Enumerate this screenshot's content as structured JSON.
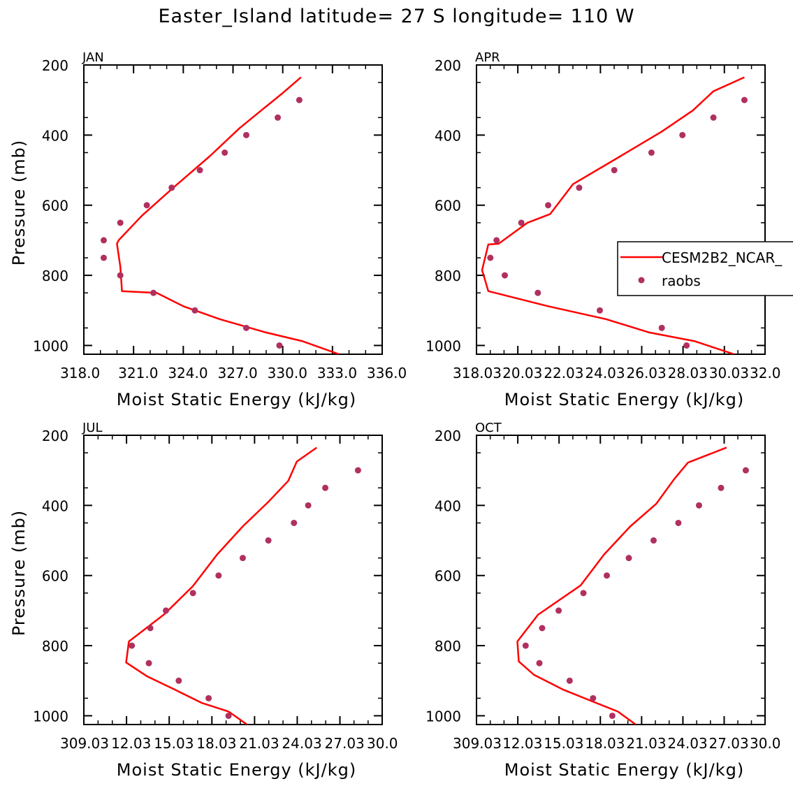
{
  "title": "Easter_Island  latitude= 27 S longitude= 110 W",
  "colors": {
    "model": "#ff0000",
    "obs": "#b03060",
    "axis": "#000000"
  },
  "legend": {
    "placement": "right-middle of APR panel",
    "entries": [
      {
        "name": "CESM2B2_NCAR_",
        "kind": "line"
      },
      {
        "name": "raobs",
        "kind": "marker"
      }
    ]
  },
  "chart_data": [
    {
      "type": "line",
      "panel": "JAN",
      "xlabel": "Moist Static Energy (kJ/kg)",
      "ylabel": "Pressure (mb)",
      "xlim": [
        318.0,
        336.0
      ],
      "ylim": [
        200,
        1025
      ],
      "xticks": [
        318,
        321,
        324,
        327,
        330,
        333,
        336
      ],
      "xtick_labels": [
        "318.0",
        "321.0",
        "324.0",
        "327.0",
        "330.0",
        "333.0",
        "336.0"
      ],
      "yticks": [
        200,
        400,
        600,
        800,
        1000
      ],
      "ytick_labels": [
        "200",
        "400",
        "600",
        "800",
        "1000"
      ],
      "model": {
        "name": "CESM2B2_NCAR_",
        "x": [
          333.4,
          331.2,
          329.0,
          326.2,
          324.0,
          322.4,
          320.3,
          320.2,
          320.0,
          320.1,
          321.5,
          323.4,
          325.6,
          327.4,
          328.7,
          330.0,
          331.1
        ],
        "y": [
          1025,
          988,
          963,
          925,
          888,
          850,
          845,
          775,
          710,
          700,
          630,
          550,
          460,
          380,
          330,
          280,
          235
        ]
      },
      "obs": {
        "name": "raobs",
        "x": [
          329.8,
          327.8,
          324.7,
          322.2,
          320.2,
          319.2,
          319.2,
          320.2,
          321.8,
          323.3,
          325.0,
          326.5,
          327.8,
          329.7,
          331.0
        ],
        "y": [
          1000,
          950,
          900,
          850,
          800,
          750,
          700,
          650,
          600,
          550,
          500,
          450,
          400,
          350,
          300
        ]
      }
    },
    {
      "type": "line",
      "panel": "APR",
      "xlabel": "Moist Static Energy (kJ/kg)",
      "ylabel": "Pressure (mb)",
      "xlim": [
        318.03,
        332.0
      ],
      "ylim": [
        200,
        1025
      ],
      "xticks": [
        318.03,
        320.03,
        322.03,
        324.03,
        326.03,
        328.03,
        330.03,
        332.0
      ],
      "xtick_labels": [
        "318.03",
        "20.03",
        "22.03",
        "24.03",
        "26.03",
        "28.03",
        "30.03",
        "32.0"
      ],
      "yticks": [
        200,
        400,
        600,
        800,
        1000
      ],
      "ytick_labels": [
        "200",
        "400",
        "600",
        "800",
        "1000"
      ],
      "model": {
        "name": "CESM2B2_NCAR_",
        "x": [
          330.5,
          328.6,
          326.4,
          324.3,
          321.5,
          318.6,
          318.3,
          318.6,
          319.1,
          320.5,
          321.6,
          322.7,
          325.0,
          327.0,
          328.5,
          329.5,
          331.0
        ],
        "y": [
          1025,
          988,
          963,
          925,
          888,
          845,
          785,
          712,
          710,
          650,
          625,
          540,
          460,
          390,
          330,
          275,
          235
        ]
      },
      "obs": {
        "name": "raobs",
        "x": [
          328.2,
          327.0,
          324.0,
          321.0,
          319.4,
          318.7,
          319.0,
          320.2,
          321.5,
          323.0,
          324.7,
          326.5,
          328.0,
          329.5,
          331.0
        ],
        "y": [
          1000,
          950,
          900,
          850,
          800,
          750,
          700,
          650,
          600,
          550,
          500,
          450,
          400,
          350,
          300
        ]
      }
    },
    {
      "type": "line",
      "panel": "JUL",
      "xlabel": "Moist Static Energy (kJ/kg)",
      "ylabel": "Pressure (mb)",
      "xlim": [
        309.03,
        330.0
      ],
      "ylim": [
        200,
        1025
      ],
      "xticks": [
        309.03,
        312.03,
        315.03,
        318.03,
        321.03,
        324.03,
        327.03,
        330.0
      ],
      "xtick_labels": [
        "309.03",
        "12.03",
        "15.03",
        "18.03",
        "21.03",
        "24.03",
        "27.03",
        "30.0"
      ],
      "yticks": [
        200,
        400,
        600,
        800,
        1000
      ],
      "ytick_labels": [
        "200",
        "400",
        "600",
        "800",
        "1000"
      ],
      "model": {
        "name": "CESM2B2_NCAR_",
        "x": [
          320.5,
          319.2,
          317.3,
          315.4,
          313.5,
          312.0,
          312.2,
          314.7,
          316.7,
          318.4,
          320.2,
          322.0,
          323.4,
          324.0,
          325.4
        ],
        "y": [
          1025,
          988,
          963,
          925,
          888,
          848,
          788,
          710,
          630,
          540,
          460,
          390,
          330,
          275,
          235
        ]
      },
      "obs": {
        "name": "raobs",
        "x": [
          319.2,
          317.8,
          315.7,
          313.6,
          312.4,
          313.7,
          314.8,
          316.7,
          318.5,
          320.2,
          322.0,
          323.8,
          324.8,
          326.0,
          328.3
        ],
        "y": [
          1000,
          950,
          900,
          850,
          800,
          750,
          700,
          650,
          600,
          550,
          500,
          450,
          400,
          350,
          300
        ]
      }
    },
    {
      "type": "line",
      "panel": "OCT",
      "xlabel": "Moist Static Energy (kJ/kg)",
      "ylabel": "Pressure (mb)",
      "xlim": [
        309.03,
        330.0
      ],
      "ylim": [
        200,
        1025
      ],
      "xticks": [
        309.03,
        312.03,
        315.03,
        318.03,
        321.03,
        324.03,
        327.03,
        330.0
      ],
      "xtick_labels": [
        "309.03",
        "12.03",
        "15.03",
        "18.03",
        "21.03",
        "24.03",
        "27.03",
        "30.0"
      ],
      "yticks": [
        200,
        400,
        600,
        800,
        1000
      ],
      "ytick_labels": [
        "200",
        "400",
        "600",
        "800",
        "1000"
      ],
      "model": {
        "name": "CESM2B2_NCAR_",
        "x": [
          320.6,
          319.3,
          317.7,
          315.3,
          313.2,
          312.1,
          312.0,
          313.5,
          316.6,
          318.3,
          320.2,
          322.1,
          323.4,
          324.4,
          327.2
        ],
        "y": [
          1025,
          988,
          963,
          925,
          883,
          845,
          788,
          712,
          628,
          540,
          460,
          395,
          325,
          278,
          235
        ]
      },
      "obs": {
        "name": "raobs",
        "x": [
          318.9,
          317.5,
          315.8,
          313.6,
          312.6,
          313.8,
          315.0,
          316.8,
          318.5,
          320.1,
          321.9,
          323.7,
          325.2,
          326.8,
          328.6
        ],
        "y": [
          1000,
          950,
          900,
          850,
          800,
          750,
          700,
          650,
          600,
          550,
          500,
          450,
          400,
          350,
          300
        ]
      }
    }
  ]
}
